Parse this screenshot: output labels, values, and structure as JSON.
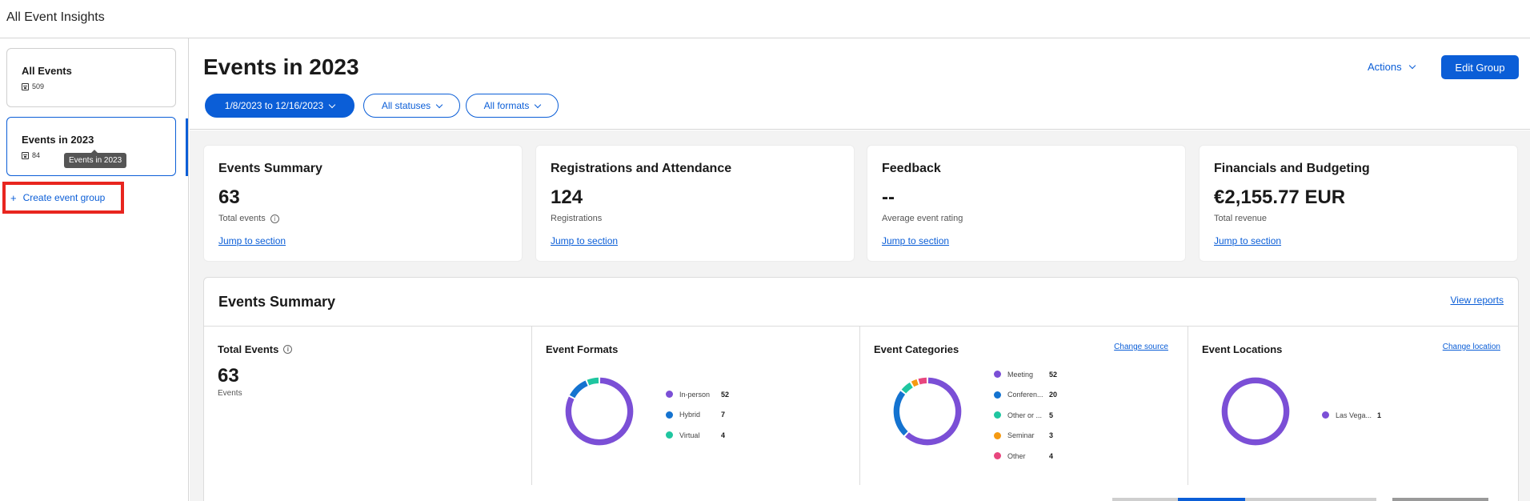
{
  "app": {
    "title": "All Event Insights"
  },
  "sidebar": {
    "groups": [
      {
        "name": "All Events",
        "count": "509",
        "active": false
      },
      {
        "name": "Events in 2023",
        "count": "84",
        "active": true
      }
    ],
    "tooltip": "Events in 2023",
    "create_label": "Create event group",
    "create_icon": "+"
  },
  "header": {
    "title": "Events in 2023",
    "filters": [
      {
        "label": "1/8/2023 to 12/16/2023",
        "primary": true
      },
      {
        "label": "All statuses",
        "primary": false
      },
      {
        "label": "All formats",
        "primary": false
      }
    ],
    "actions_label": "Actions",
    "edit_label": "Edit Group"
  },
  "summary_cards": [
    {
      "title": "Events Summary",
      "value": "63",
      "label": "Total events",
      "info": true,
      "link": "Jump to section"
    },
    {
      "title": "Registrations and Attendance",
      "value": "124",
      "label": "Registrations",
      "info": false,
      "link": "Jump to section"
    },
    {
      "title": "Feedback",
      "value": "--",
      "label": "Average event rating",
      "info": false,
      "link": "Jump to section"
    },
    {
      "title": "Financials and Budgeting",
      "value": "€2,155.77 EUR",
      "label": "Total revenue",
      "info": false,
      "link": "Jump to section"
    }
  ],
  "events_summary": {
    "title": "Events Summary",
    "view_reports": "View reports",
    "total_events": {
      "title": "Total Events",
      "value": "63",
      "label": "Events"
    },
    "formats": {
      "title": "Event Formats",
      "items": [
        {
          "name": "In-person",
          "value": 52,
          "color": "#7b4fd6"
        },
        {
          "name": "Hybrid",
          "value": 7,
          "color": "#1473d0"
        },
        {
          "name": "Virtual",
          "value": 4,
          "color": "#1fc6a0"
        }
      ]
    },
    "categories": {
      "title": "Event Categories",
      "link": "Change source",
      "items": [
        {
          "name": "Meeting",
          "value": 52,
          "color": "#7b4fd6"
        },
        {
          "name": "Conferen...",
          "value": 20,
          "color": "#1473d0"
        },
        {
          "name": "Other or ...",
          "value": 5,
          "color": "#1fc6a0"
        },
        {
          "name": "Seminar",
          "value": 3,
          "color": "#f59a12"
        },
        {
          "name": "Other",
          "value": 4,
          "color": "#e8467e"
        }
      ]
    },
    "locations": {
      "title": "Event Locations",
      "link": "Change location",
      "items": [
        {
          "name": "Las Vega...",
          "value": 1,
          "color": "#7b4fd6"
        }
      ]
    }
  },
  "icons": {
    "calendar": "calendar-icon",
    "info": "info-icon",
    "chevron": "chevron-down-icon",
    "plus": "plus-icon"
  }
}
